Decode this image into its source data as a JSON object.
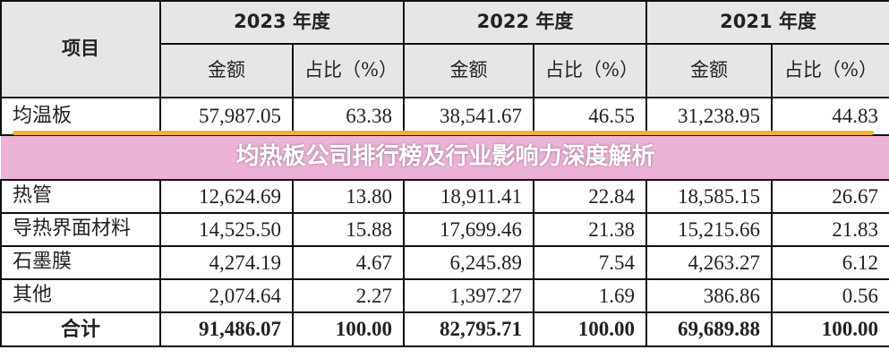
{
  "header": {
    "item": "项目",
    "years": [
      "2023 年度",
      "2022 年度",
      "2021 年度"
    ],
    "amount": "金额",
    "ratio": "占比（%）"
  },
  "rows": [
    {
      "item": "均温板",
      "v": [
        "57,987.05",
        "63.38",
        "38,541.67",
        "46.55",
        "31,238.95",
        "44.83"
      ]
    },
    {
      "item": "热管",
      "v": [
        "12,624.69",
        "13.80",
        "18,911.41",
        "22.84",
        "18,585.15",
        "26.67"
      ]
    },
    {
      "item": "导热界面材料",
      "v": [
        "14,525.50",
        "15.88",
        "17,699.46",
        "21.38",
        "15,215.66",
        "21.83"
      ]
    },
    {
      "item": "石墨膜",
      "v": [
        "4,274.19",
        "4.67",
        "6,245.89",
        "7.54",
        "4,263.27",
        "6.12"
      ]
    },
    {
      "item": "其他",
      "v": [
        "2,074.64",
        "2.27",
        "1,397.27",
        "1.69",
        "386.86",
        "0.56"
      ]
    }
  ],
  "total": {
    "item": "合计",
    "v": [
      "91,486.07",
      "100.00",
      "82,795.71",
      "100.00",
      "69,689.88",
      "100.00"
    ]
  },
  "banner": {
    "title": "均热板公司排行榜及行业影响力深度解析"
  },
  "colors": {
    "highlight": "#f2b233",
    "banner": "#e696c8",
    "header_bg": "#e6e6e6"
  }
}
